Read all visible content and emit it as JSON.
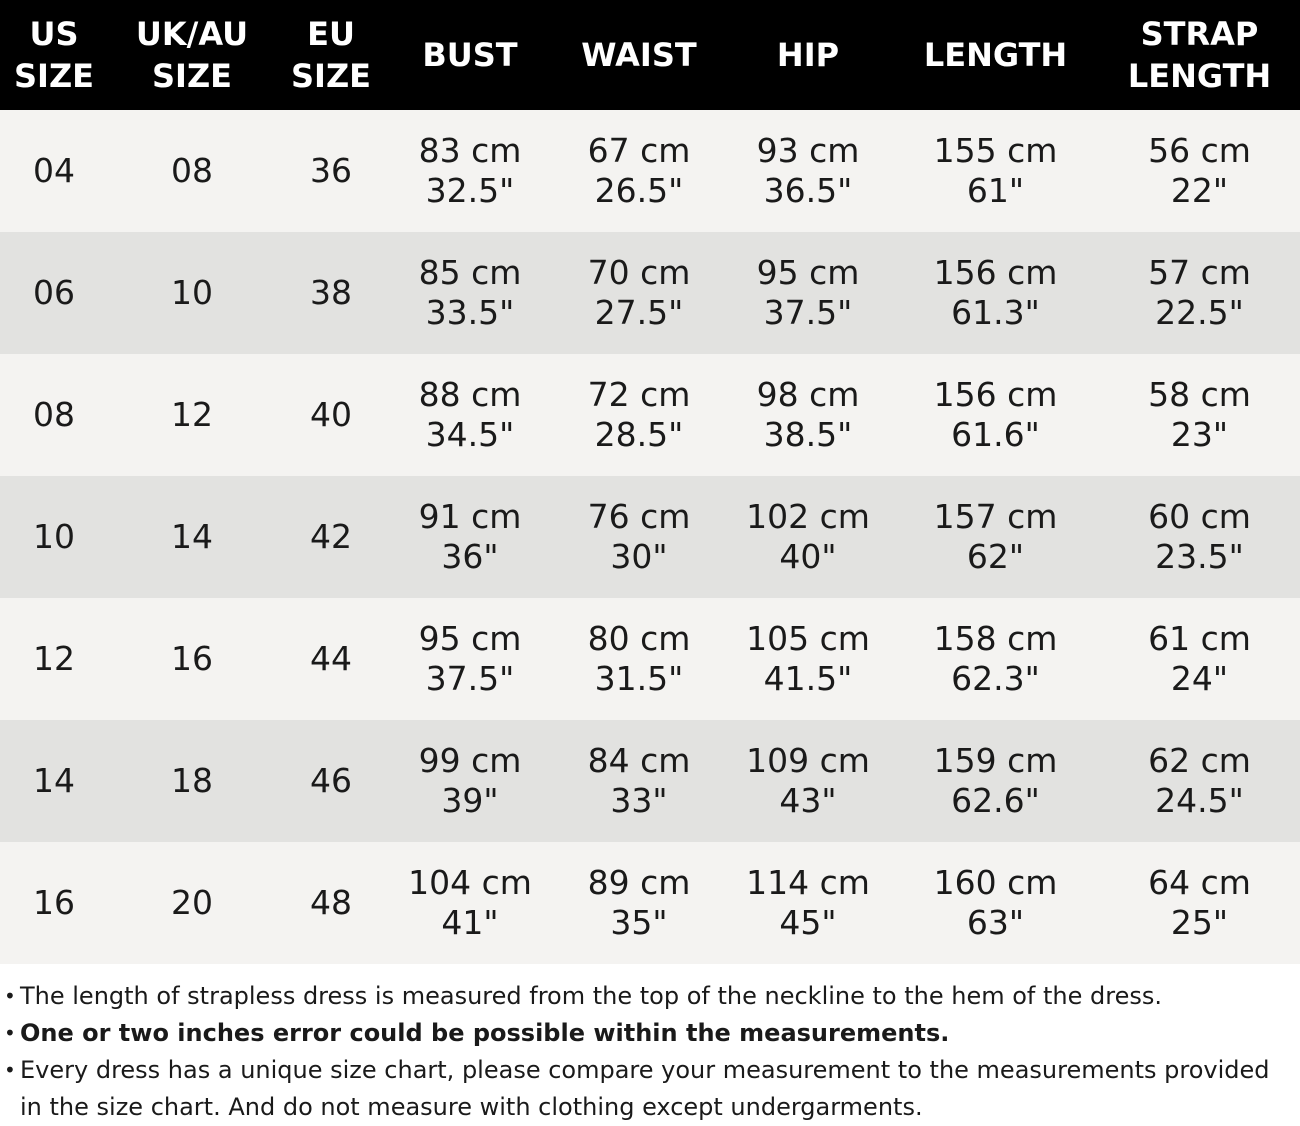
{
  "headers": [
    [
      "US",
      "SIZE"
    ],
    [
      "UK/AU",
      "SIZE"
    ],
    [
      "EU",
      "SIZE"
    ],
    [
      "BUST"
    ],
    [
      "WAIST"
    ],
    [
      "HIP"
    ],
    [
      "LENGTH"
    ],
    [
      "STRAP",
      "LENGTH"
    ]
  ],
  "rows": [
    {
      "us": "04",
      "uk": "08",
      "eu": "36",
      "bust": [
        "83 cm",
        "32.5\""
      ],
      "waist": [
        "67 cm",
        "26.5\""
      ],
      "hip": [
        "93 cm",
        "36.5\""
      ],
      "length": [
        "155 cm",
        "61\""
      ],
      "strap": [
        "56 cm",
        "22\""
      ]
    },
    {
      "us": "06",
      "uk": "10",
      "eu": "38",
      "bust": [
        "85 cm",
        "33.5\""
      ],
      "waist": [
        "70 cm",
        "27.5\""
      ],
      "hip": [
        "95 cm",
        "37.5\""
      ],
      "length": [
        "156 cm",
        "61.3\""
      ],
      "strap": [
        "57 cm",
        "22.5\""
      ]
    },
    {
      "us": "08",
      "uk": "12",
      "eu": "40",
      "bust": [
        "88 cm",
        "34.5\""
      ],
      "waist": [
        "72 cm",
        "28.5\""
      ],
      "hip": [
        "98 cm",
        "38.5\""
      ],
      "length": [
        "156 cm",
        "61.6\""
      ],
      "strap": [
        "58 cm",
        "23\""
      ]
    },
    {
      "us": "10",
      "uk": "14",
      "eu": "42",
      "bust": [
        "91 cm",
        "36\""
      ],
      "waist": [
        "76 cm",
        "30\""
      ],
      "hip": [
        "102 cm",
        "40\""
      ],
      "length": [
        "157 cm",
        "62\""
      ],
      "strap": [
        "60 cm",
        "23.5\""
      ]
    },
    {
      "us": "12",
      "uk": "16",
      "eu": "44",
      "bust": [
        "95 cm",
        "37.5\""
      ],
      "waist": [
        "80 cm",
        "31.5\""
      ],
      "hip": [
        "105 cm",
        "41.5\""
      ],
      "length": [
        "158 cm",
        "62.3\""
      ],
      "strap": [
        "61 cm",
        "24\""
      ]
    },
    {
      "us": "14",
      "uk": "18",
      "eu": "46",
      "bust": [
        "99 cm",
        "39\""
      ],
      "waist": [
        "84 cm",
        "33\""
      ],
      "hip": [
        "109 cm",
        "43\""
      ],
      "length": [
        "159 cm",
        "62.6\""
      ],
      "strap": [
        "62 cm",
        "24.5\""
      ]
    },
    {
      "us": "16",
      "uk": "20",
      "eu": "48",
      "bust": [
        "104 cm",
        "41\""
      ],
      "waist": [
        "89 cm",
        "35\""
      ],
      "hip": [
        "114 cm",
        "45\""
      ],
      "length": [
        "160 cm",
        "63\""
      ],
      "strap": [
        "64 cm",
        "25\""
      ]
    }
  ],
  "notes": [
    {
      "bullet": "•",
      "text": "The length of strapless dress is measured from the top of the neckline to the hem of the dress.",
      "bold": false
    },
    {
      "bullet": "•",
      "text": "One or two inches error could be possible within the measurements.",
      "bold": true
    },
    {
      "bullet": "•",
      "text": "Every dress has a unique size chart, please compare your measurement to the measurements provided in the size chart. And do not measure with clothing except undergarments.",
      "bold": false
    }
  ],
  "colors": {
    "header_bg": "#000000",
    "header_text": "#ffffff",
    "row_light": "#f4f3f1",
    "row_dark": "#e2e2e0",
    "text": "#1a1a1a"
  }
}
